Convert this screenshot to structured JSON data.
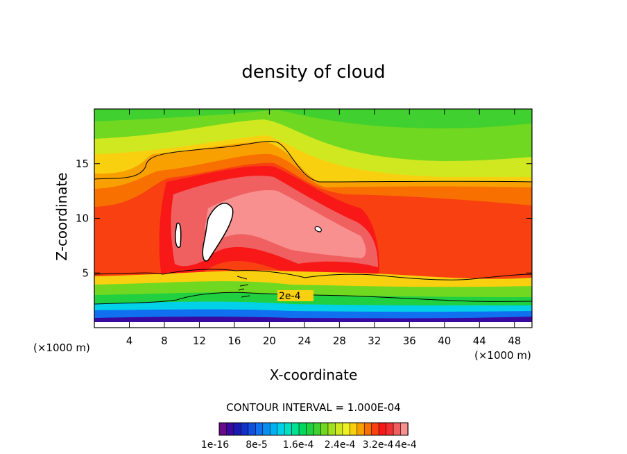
{
  "chart_data": {
    "type": "contour",
    "title": "density of cloud",
    "xlabel": "X-coordinate",
    "ylabel": "Z-coordinate",
    "x_unit_left": "(×1000 m)",
    "x_unit_right": "(×1000 m)",
    "xlim": [
      0,
      50
    ],
    "ylim": [
      0,
      20
    ],
    "x_ticks": [
      "4",
      "8",
      "12",
      "16",
      "20",
      "24",
      "28",
      "32",
      "36",
      "40",
      "44",
      "48"
    ],
    "y_ticks": [
      "5",
      "10",
      "15"
    ],
    "contour_interval_text": "CONTOUR INTERVAL = 1.000E-04",
    "contour_label": "2e-4",
    "colorbar": {
      "tick_labels": [
        "1e-16",
        "8e-5",
        "1.6e-4",
        "2.4e-4",
        "3.2e-4",
        "4e-4"
      ],
      "colors": [
        "#6a0a8a",
        "#3a0aa0",
        "#1a1ab0",
        "#1030c8",
        "#1050e0",
        "#1070f0",
        "#0890f0",
        "#00b0f0",
        "#00d0e8",
        "#00e0c0",
        "#00e090",
        "#00d860",
        "#20d040",
        "#40d030",
        "#70d820",
        "#a0e020",
        "#d0e820",
        "#f0f020",
        "#f8d010",
        "#f8a000",
        "#f87000",
        "#f84010",
        "#f81818",
        "#f03030",
        "#f06060",
        "#f89090"
      ]
    },
    "levels": [
      {
        "value": 0.0001,
        "color": "#00e0c0"
      },
      {
        "value": 0.00015,
        "color": "#20d040"
      },
      {
        "value": 0.0002,
        "color": "#70d820"
      },
      {
        "value": 0.00025,
        "color": "#d0e820"
      },
      {
        "value": 0.0003,
        "color": "#f8d010"
      },
      {
        "value": 0.00035,
        "color": "#f87000"
      },
      {
        "value": 0.0004,
        "color": "#f81818"
      },
      {
        "value": 0.00045,
        "color": "#f06060"
      },
      {
        "value": 0.0005,
        "color": "#f89090"
      },
      {
        "value": 0.00055,
        "color": "#ffffff"
      }
    ]
  }
}
